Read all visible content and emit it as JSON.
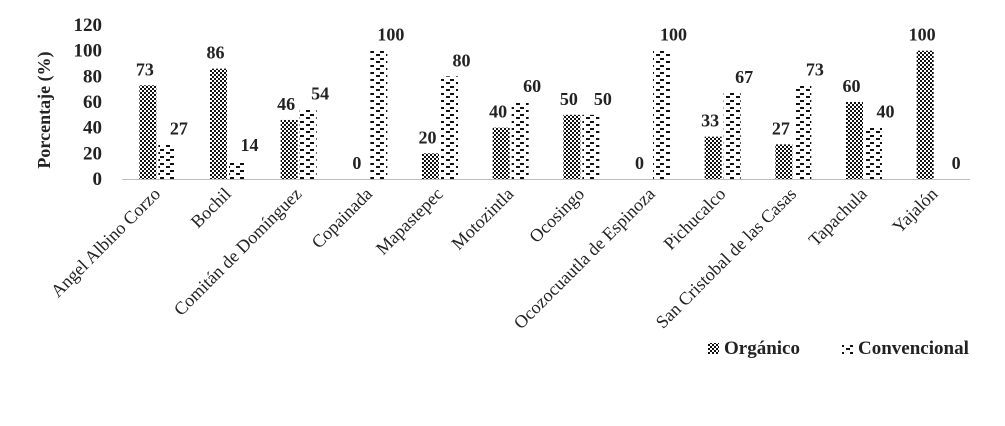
{
  "chart_data": {
    "type": "bar",
    "title": "",
    "xlabel": "",
    "ylabel": "Porcentaje (%)",
    "ylim": [
      0,
      120
    ],
    "yticks": [
      0,
      20,
      40,
      60,
      80,
      100,
      120
    ],
    "ytick_labels": [
      "0",
      "20",
      "40",
      "60",
      "80",
      "100",
      "120"
    ],
    "grid": false,
    "legend": "bottom-right",
    "categories": [
      "Angel Albino Corzo",
      "Bochil",
      "Comitán de Domínguez",
      "Copainada",
      "Mapastepec",
      "Motozintla",
      "Ocosingo",
      "Ocozocuautla de Espinoza",
      "Pichucalco",
      "San Cristobal de las Casas",
      "Tapachula",
      "Yajalón"
    ],
    "series": [
      {
        "name": "Orgánico",
        "pattern": "checker",
        "values": [
          73,
          86,
          46,
          0,
          20,
          40,
          50,
          0,
          33,
          27,
          60,
          100
        ]
      },
      {
        "name": "Convencional",
        "pattern": "dashes",
        "values": [
          27,
          14,
          54,
          100,
          80,
          60,
          50,
          100,
          67,
          73,
          40,
          0
        ]
      }
    ],
    "colors": {
      "ink": "#222222",
      "background": "#ffffff"
    }
  }
}
